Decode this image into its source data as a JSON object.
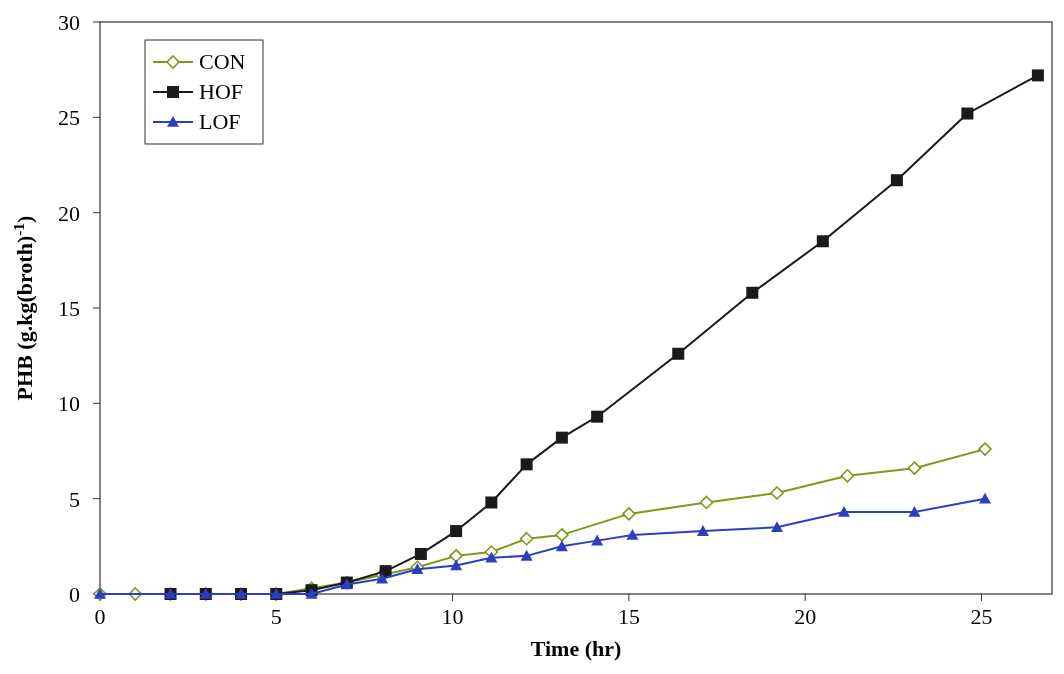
{
  "chart_data": {
    "type": "line",
    "xlabel": "Time (hr)",
    "ylabel": "PHB (g.kg(broth)$^{-1}$)",
    "xlim": [
      0,
      27
    ],
    "xticks": [
      0,
      5,
      10,
      15,
      20,
      25
    ],
    "ylim": [
      0,
      30
    ],
    "yticks": [
      0,
      5,
      10,
      15,
      20,
      25,
      30
    ],
    "grid": false,
    "legend": "top left",
    "series": [
      {
        "name": "CON",
        "color": "#7a9a1a",
        "marker": "diamond",
        "x": [
          0,
          1,
          2,
          3,
          4,
          5,
          6,
          7,
          8,
          9,
          10.1,
          11.1,
          12.1,
          13.1,
          15,
          17.2,
          19.2,
          21.2,
          23.1,
          25.1
        ],
        "values": [
          0,
          0,
          0,
          0,
          0,
          0,
          0.3,
          0.6,
          1.0,
          1.4,
          2.0,
          2.2,
          2.9,
          3.1,
          4.2,
          4.8,
          5.3,
          6.2,
          6.6,
          7.6
        ]
      },
      {
        "name": "HOF",
        "color": "#1a1a1a",
        "marker": "square",
        "x": [
          2,
          3,
          4,
          5,
          6,
          7,
          8.1,
          9.1,
          10.1,
          11.1,
          12.1,
          13.1,
          14.1,
          16.4,
          18.5,
          20.5,
          22.6,
          24.6,
          26.6
        ],
        "values": [
          0,
          0,
          0,
          0,
          0.2,
          0.6,
          1.2,
          2.1,
          3.3,
          4.8,
          6.8,
          8.2,
          9.3,
          12.6,
          15.8,
          18.5,
          21.7,
          25.2,
          27.2
        ]
      },
      {
        "name": "LOF",
        "color": "#2b3fc0",
        "marker": "triangle",
        "x": [
          0,
          2,
          3,
          4,
          5,
          6,
          7,
          8,
          9,
          10.1,
          11.1,
          12.1,
          13.1,
          14.1,
          15.1,
          17.1,
          19.2,
          21.1,
          23.1,
          25.1
        ],
        "values": [
          0,
          0,
          0,
          0,
          0,
          0,
          0.5,
          0.8,
          1.3,
          1.5,
          1.9,
          2.0,
          2.5,
          2.8,
          3.1,
          3.3,
          3.5,
          4.3,
          4.3,
          5.0
        ]
      }
    ]
  }
}
